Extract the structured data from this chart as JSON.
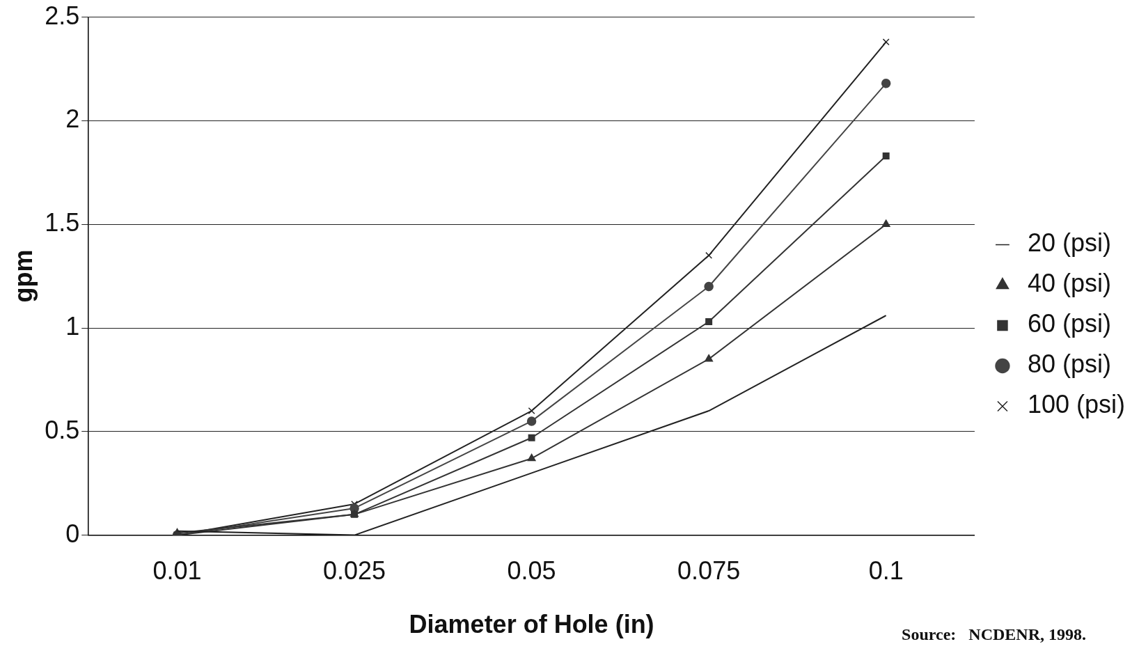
{
  "chart_data": {
    "type": "line",
    "xlabel": "Diameter of Hole (in)",
    "ylabel": "gpm",
    "categories": [
      "0.01",
      "0.025",
      "0.05",
      "0.075",
      "0.1"
    ],
    "series": [
      {
        "name": "20 (psi)",
        "color": "#222222",
        "marker": "none",
        "values": [
          0.02,
          0,
          0.3,
          0.6,
          1.06
        ]
      },
      {
        "name": "40 (psi)",
        "color": "#333333",
        "marker": "triangle",
        "values": [
          0.01,
          0.1,
          0.37,
          0.85,
          1.5
        ]
      },
      {
        "name": "60 (psi)",
        "color": "#333333",
        "marker": "square",
        "values": [
          0,
          0.1,
          0.47,
          1.03,
          1.83
        ]
      },
      {
        "name": "80 (psi)",
        "color": "#444444",
        "marker": "circle",
        "values": [
          0,
          0.13,
          0.55,
          1.2,
          2.18
        ]
      },
      {
        "name": "100 (psi)",
        "color": "#222222",
        "marker": "cross",
        "values": [
          0,
          0.15,
          0.6,
          1.35,
          2.38
        ]
      }
    ],
    "ylim": [
      0,
      2.5
    ],
    "yticks": [
      0,
      0.5,
      1,
      1.5,
      2,
      2.5
    ],
    "grid": "y",
    "legend": "right",
    "annotations": [
      "Source:   NCDENR, 1998."
    ]
  }
}
